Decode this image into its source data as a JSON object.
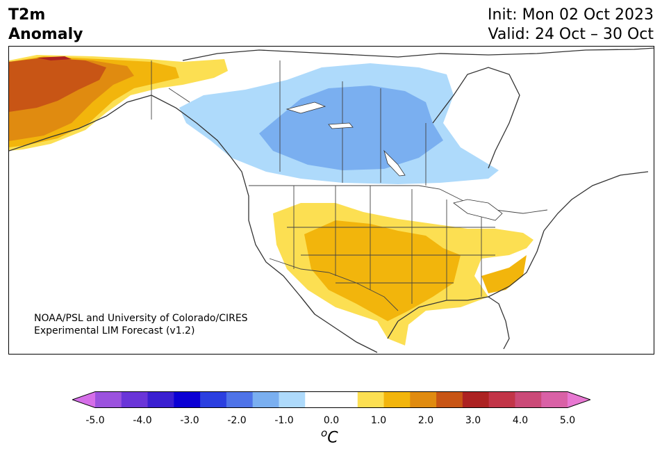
{
  "title": {
    "line1": "T2m",
    "line2": "Anomaly"
  },
  "header_right": {
    "init": "Init: Mon 02 Oct 2023",
    "valid": "Valid: 24 Oct – 30 Oct"
  },
  "credit": {
    "line1": "NOAA/PSL and University of Colorado/CIRES",
    "line2": "Experimental LIM Forecast (v1.2)"
  },
  "map": {
    "region": "North America",
    "anomaly_regions": [
      {
        "area": "Alaska",
        "level": "warm",
        "max_anomaly_c": 3.0
      },
      {
        "area": "Western Canada / Canadian Prairies",
        "level": "cold",
        "min_anomaly_c": -1.5
      },
      {
        "area": "Southwestern and South-central US",
        "level": "warm",
        "max_anomaly_c": 1.5
      },
      {
        "area": "Southeastern US / Mid-Atlantic",
        "level": "warm",
        "max_anomaly_c": 1.5
      }
    ]
  },
  "colorbar": {
    "unit_symbol": "C",
    "unit_prefix": "o",
    "ticks": [
      "-5.0",
      "-4.0",
      "-3.0",
      "-2.0",
      "-1.0",
      "0.0",
      "1.0",
      "2.0",
      "3.0",
      "4.0",
      "5.0"
    ],
    "colors": [
      "#d56ee8",
      "#9b52de",
      "#6a35d8",
      "#3a1fd1",
      "#0b00d4",
      "#2b3fe0",
      "#4e73e8",
      "#7aaff0",
      "#aedafb",
      "#ffffff",
      "#ffffff",
      "#fcdf52",
      "#f2b50c",
      "#e08b10",
      "#c85515",
      "#ac2222",
      "#c23548",
      "#cb4a78",
      "#d961a6",
      "#e878d2"
    ]
  }
}
